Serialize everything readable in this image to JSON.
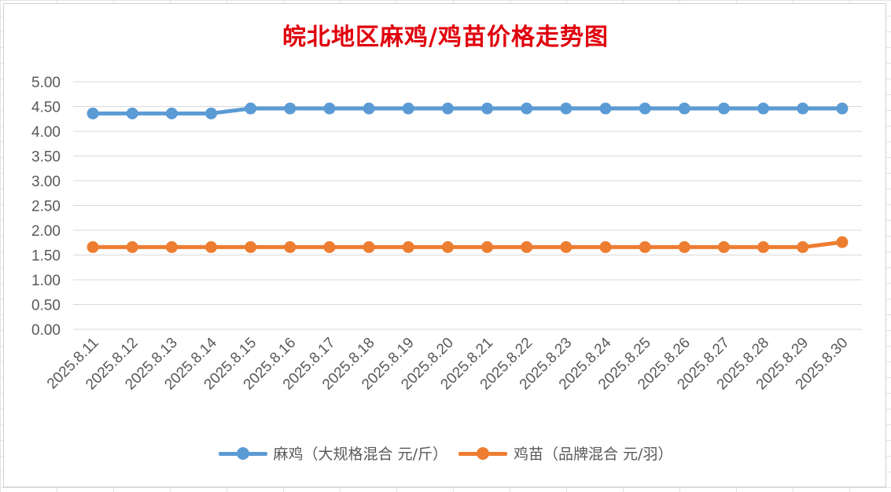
{
  "chart_data": {
    "type": "line",
    "title": "皖北地区麻鸡/鸡苗价格走势图",
    "xlabel": "",
    "ylabel": "",
    "categories": [
      "2025.8.11",
      "2025.8.12",
      "2025.8.13",
      "2025.8.14",
      "2025.8.15",
      "2025.8.16",
      "2025.8.17",
      "2025.8.18",
      "2025.8.19",
      "2025.8.20",
      "2025.8.21",
      "2025.8.22",
      "2025.8.23",
      "2025.8.24",
      "2025.8.25",
      "2025.8.26",
      "2025.8.27",
      "2025.8.28",
      "2025.8.29",
      "2025.8.30"
    ],
    "series": [
      {
        "name": "麻鸡（大规格混合 元/斤）",
        "color": "#5b9bd5",
        "values": [
          4.36,
          4.36,
          4.36,
          4.36,
          4.46,
          4.46,
          4.46,
          4.46,
          4.46,
          4.46,
          4.46,
          4.46,
          4.46,
          4.46,
          4.46,
          4.46,
          4.46,
          4.46,
          4.46,
          4.46
        ]
      },
      {
        "name": "鸡苗（品牌混合 元/羽）",
        "color": "#ed7d31",
        "values": [
          1.66,
          1.66,
          1.66,
          1.66,
          1.66,
          1.66,
          1.66,
          1.66,
          1.66,
          1.66,
          1.66,
          1.66,
          1.66,
          1.66,
          1.66,
          1.66,
          1.66,
          1.66,
          1.66,
          1.76
        ]
      }
    ],
    "ylim": [
      0,
      5
    ],
    "yticks": [
      "0.00",
      "0.50",
      "1.00",
      "1.50",
      "2.00",
      "2.50",
      "3.00",
      "3.50",
      "4.00",
      "4.50",
      "5.00"
    ],
    "grid": true,
    "legend_position": "bottom"
  }
}
